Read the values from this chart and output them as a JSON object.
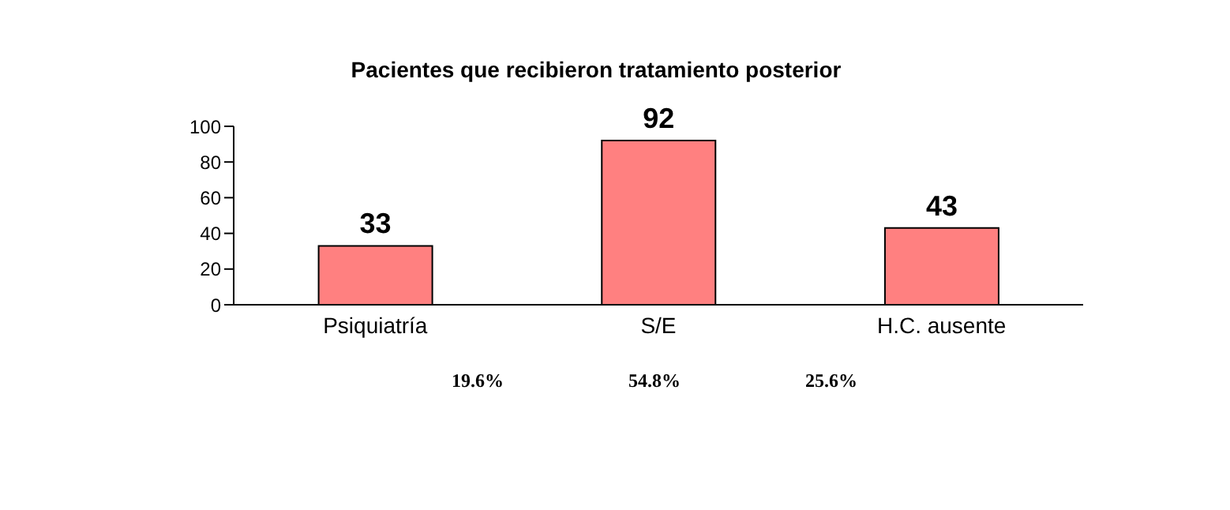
{
  "chart_data": {
    "type": "bar",
    "title": "Pacientes que recibieron tratamiento posterior",
    "categories": [
      "Psiquiatría",
      "S/E",
      "H.C. ausente"
    ],
    "values": [
      33,
      92,
      43
    ],
    "color": "#ff8080",
    "ylim": [
      0,
      100
    ],
    "yticks": [
      0,
      20,
      40,
      60,
      80,
      100
    ],
    "data_labels": true,
    "annotations": [
      "19.6%",
      "54.8%",
      "25.6%"
    ]
  }
}
